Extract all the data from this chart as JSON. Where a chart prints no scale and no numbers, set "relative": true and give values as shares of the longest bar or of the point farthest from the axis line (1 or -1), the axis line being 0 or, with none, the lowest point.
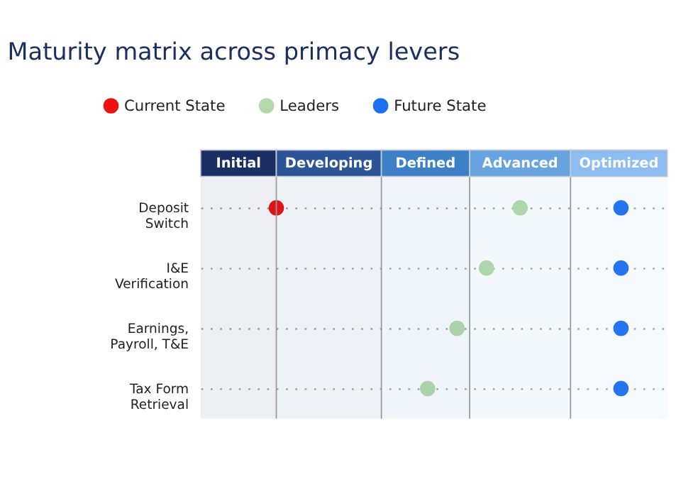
{
  "chart_data": {
    "type": "scatter",
    "title": "Maturity matrix across primacy levers",
    "categories": [
      "Deposit Switch",
      "I&E Verification",
      "Earnings, Payroll, T&E",
      "Tax Form Retrieval"
    ],
    "orientation": "horizontal",
    "relative": true,
    "series": [
      {
        "name": "Current State",
        "color": "#ee1111",
        "values": [
          0.18,
          null,
          null,
          null
        ]
      },
      {
        "name": "Leaders",
        "color": "#b5d9a8",
        "values": [
          0.76,
          0.68,
          0.61,
          0.54
        ]
      },
      {
        "name": "Future State",
        "color": "#1c6ef2",
        "values": [
          1,
          1,
          1,
          1
        ]
      }
    ],
    "bands": [
      {
        "axis": "x",
        "from": 0,
        "to": 0.18,
        "label": "Initial",
        "color": "#1b2f63"
      },
      {
        "axis": "x",
        "from": 0.18,
        "to": 0.43,
        "label": "Developing",
        "color": "#2c5597"
      },
      {
        "axis": "x",
        "from": 0.43,
        "to": 0.64,
        "label": "Defined",
        "color": "#3d80c6"
      },
      {
        "axis": "x",
        "from": 0.64,
        "to": 0.88,
        "label": "Advanced",
        "color": "#67a3de"
      },
      {
        "axis": "x",
        "from": 0.88,
        "to": 1.11,
        "label": "Optimized",
        "color": "#8cbcf0"
      }
    ],
    "tick_labels": "y",
    "grid": "y",
    "line_style": "dotted",
    "marker": "circle",
    "legend": "top left"
  }
}
